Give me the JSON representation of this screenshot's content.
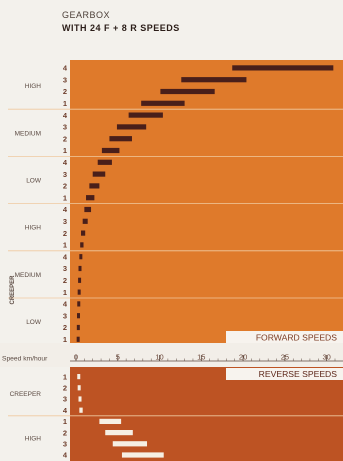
{
  "title": {
    "line1": "GEARBOX",
    "line2": "WITH 24 F + 8 R SPEEDS"
  },
  "colors": {
    "forward_bg": "#df7a2b",
    "reverse_bg": "#bd5323",
    "forward_bar": "#4a1f1a",
    "reverse_bar": "#f6efe3",
    "gear_box": "#f3f1ec",
    "divider": "#f0c9a0"
  },
  "chart_data": {
    "type": "bar",
    "xlabel": "Speed km/hour",
    "xlim": [
      0,
      31
    ],
    "xticks": [
      0,
      5,
      10,
      15,
      20,
      25,
      30
    ],
    "forward_label": "FORWARD  SPEEDS",
    "reverse_label": "REVERSE SPEEDS",
    "group_labels": {
      "creeper": "CREEPER"
    },
    "forward": [
      {
        "range": "HIGH",
        "gear": "4",
        "start": 18.7,
        "end": 30.8
      },
      {
        "range": "HIGH",
        "gear": "3",
        "start": 12.6,
        "end": 20.4
      },
      {
        "range": "HIGH",
        "gear": "2",
        "start": 10.1,
        "end": 16.6
      },
      {
        "range": "HIGH",
        "gear": "1",
        "start": 7.8,
        "end": 13.0
      },
      {
        "range": "MEDIUM",
        "gear": "4",
        "start": 6.3,
        "end": 10.4
      },
      {
        "range": "MEDIUM",
        "gear": "3",
        "start": 4.9,
        "end": 8.4
      },
      {
        "range": "MEDIUM",
        "gear": "2",
        "start": 4.0,
        "end": 6.7
      },
      {
        "range": "MEDIUM",
        "gear": "1",
        "start": 3.1,
        "end": 5.2
      },
      {
        "range": "LOW",
        "gear": "4",
        "start": 2.6,
        "end": 4.3
      },
      {
        "range": "LOW",
        "gear": "3",
        "start": 2.0,
        "end": 3.5
      },
      {
        "range": "LOW",
        "gear": "2",
        "start": 1.6,
        "end": 2.8
      },
      {
        "range": "LOW",
        "gear": "1",
        "start": 1.2,
        "end": 2.2
      },
      {
        "range": "HIGH",
        "gear": "4",
        "start": 1.0,
        "end": 1.8
      },
      {
        "range": "HIGH",
        "gear": "3",
        "start": 0.8,
        "end": 1.4
      },
      {
        "range": "HIGH",
        "gear": "2",
        "start": 0.6,
        "end": 1.1
      },
      {
        "range": "HIGH",
        "gear": "1",
        "start": 0.5,
        "end": 0.9
      },
      {
        "range": "MEDIUM",
        "gear": "4",
        "start": 0.4,
        "end": 0.7
      },
      {
        "range": "MEDIUM",
        "gear": "3",
        "start": 0.3,
        "end": 0.6
      },
      {
        "range": "MEDIUM",
        "gear": "2",
        "start": 0.25,
        "end": 0.45
      },
      {
        "range": "MEDIUM",
        "gear": "1",
        "start": 0.2,
        "end": 0.35
      },
      {
        "range": "LOW",
        "gear": "4",
        "start": 0.15,
        "end": 0.3
      },
      {
        "range": "LOW",
        "gear": "3",
        "start": 0.12,
        "end": 0.24
      },
      {
        "range": "LOW",
        "gear": "2",
        "start": 0.1,
        "end": 0.19
      },
      {
        "range": "LOW",
        "gear": "1",
        "start": 0.08,
        "end": 0.15
      }
    ],
    "reverse": [
      {
        "range": "CREEPER",
        "gear": "1",
        "start": 0.15,
        "end": 0.3
      },
      {
        "range": "CREEPER",
        "gear": "2",
        "start": 0.2,
        "end": 0.4
      },
      {
        "range": "CREEPER",
        "gear": "3",
        "start": 0.3,
        "end": 0.6
      },
      {
        "range": "CREEPER",
        "gear": "4",
        "start": 0.4,
        "end": 0.8
      },
      {
        "range": "HIGH",
        "gear": "1",
        "start": 2.8,
        "end": 5.4
      },
      {
        "range": "HIGH",
        "gear": "2",
        "start": 3.5,
        "end": 6.8
      },
      {
        "range": "HIGH",
        "gear": "3",
        "start": 4.4,
        "end": 8.5
      },
      {
        "range": "HIGH",
        "gear": "4",
        "start": 5.5,
        "end": 10.5
      }
    ]
  }
}
